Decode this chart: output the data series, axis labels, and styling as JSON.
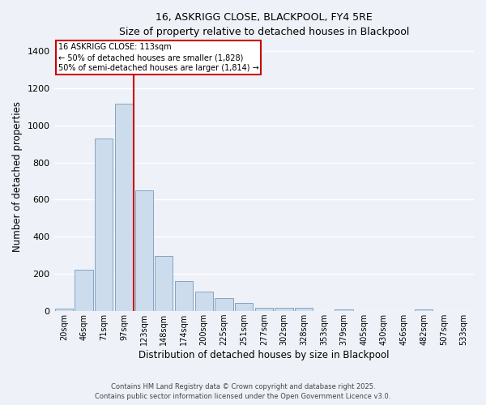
{
  "title": "16, ASKRIGG CLOSE, BLACKPOOL, FY4 5RE",
  "subtitle": "Size of property relative to detached houses in Blackpool",
  "xlabel": "Distribution of detached houses by size in Blackpool",
  "ylabel": "Number of detached properties",
  "categories": [
    "20sqm",
    "46sqm",
    "71sqm",
    "97sqm",
    "123sqm",
    "148sqm",
    "174sqm",
    "200sqm",
    "225sqm",
    "251sqm",
    "277sqm",
    "302sqm",
    "328sqm",
    "353sqm",
    "379sqm",
    "405sqm",
    "430sqm",
    "456sqm",
    "482sqm",
    "507sqm",
    "533sqm"
  ],
  "values": [
    13,
    225,
    930,
    1115,
    650,
    295,
    160,
    105,
    70,
    45,
    20,
    17,
    20,
    0,
    10,
    0,
    0,
    0,
    10,
    0,
    0
  ],
  "bar_color": "#ccdcec",
  "bar_edge_color": "#7799bb",
  "bg_color": "#eef2f8",
  "grid_color": "#ffffff",
  "annotation_box_color": "#cc0000",
  "marker_label": "16 ASKRIGG CLOSE: 113sqm",
  "annotation_line1": "← 50% of detached houses are smaller (1,828)",
  "annotation_line2": "50% of semi-detached houses are larger (1,814) →",
  "ylim": [
    0,
    1450
  ],
  "yticks": [
    0,
    200,
    400,
    600,
    800,
    1000,
    1200,
    1400
  ],
  "footnote1": "Contains HM Land Registry data © Crown copyright and database right 2025.",
  "footnote2": "Contains public sector information licensed under the Open Government Licence v3.0."
}
